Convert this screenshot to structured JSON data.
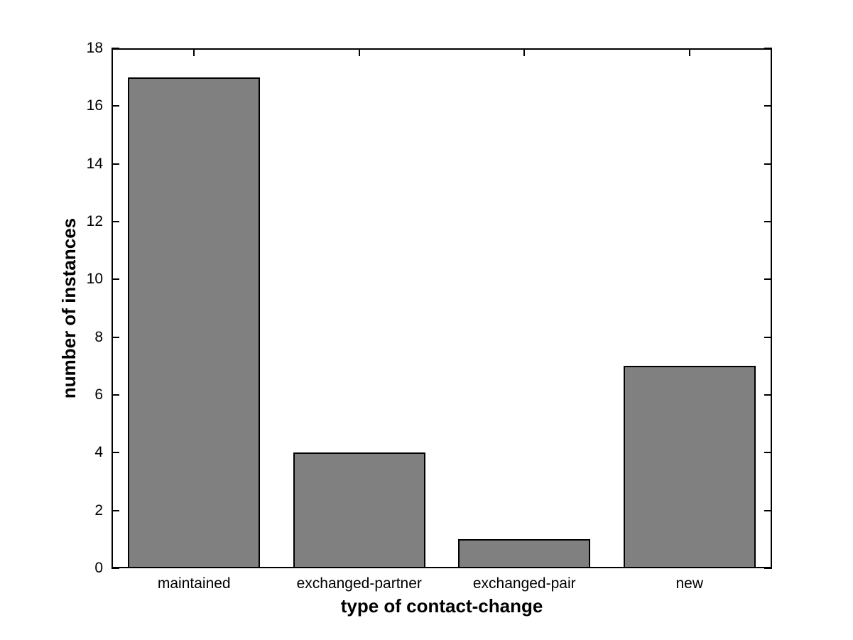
{
  "chart_data": {
    "type": "bar",
    "categories": [
      "maintained",
      "exchanged-partner",
      "exchanged-pair",
      "new"
    ],
    "values": [
      17,
      4,
      1,
      7
    ],
    "xlabel": "type of contact-change",
    "ylabel": "number of instances",
    "ylim": [
      0,
      18
    ],
    "yticks": [
      0,
      2,
      4,
      6,
      8,
      10,
      12,
      14,
      16,
      18
    ],
    "bar_width_fraction": 0.8,
    "bar_color": "#808080",
    "bar_edge_color": "#000000",
    "axis_color": "#000000",
    "background_color": "#ffffff",
    "grid": false,
    "legend": null
  }
}
